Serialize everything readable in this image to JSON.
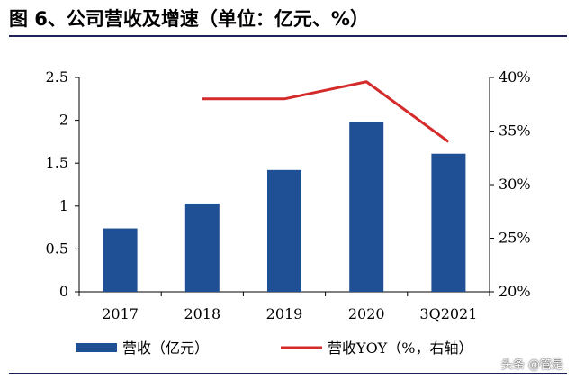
{
  "header": {
    "title": "图 6、公司营收及增速（单位：亿元、%）"
  },
  "chart_data": {
    "type": "bar",
    "categories": [
      "2017",
      "2018",
      "2019",
      "2020",
      "3Q2021"
    ],
    "series": [
      {
        "name": "营收（亿元）",
        "kind": "bar",
        "axis": "left",
        "color": "#1f5096",
        "values": [
          0.74,
          1.03,
          1.42,
          1.98,
          1.61
        ]
      },
      {
        "name": "营收YOY（%，右轴）",
        "kind": "line",
        "axis": "right",
        "color": "#d42a2a",
        "values": [
          null,
          38.0,
          38.0,
          39.6,
          34.0
        ]
      }
    ],
    "y_left": {
      "min": 0,
      "max": 2.5,
      "ticks": [
        "0",
        "0.5",
        "1",
        "1.5",
        "2",
        "2.5"
      ]
    },
    "y_right": {
      "min": 20,
      "max": 40,
      "ticks": [
        "20%",
        "25%",
        "30%",
        "35%",
        "40%"
      ]
    },
    "grid": false,
    "legend_position": "bottom"
  },
  "watermark": "头条 @管是"
}
